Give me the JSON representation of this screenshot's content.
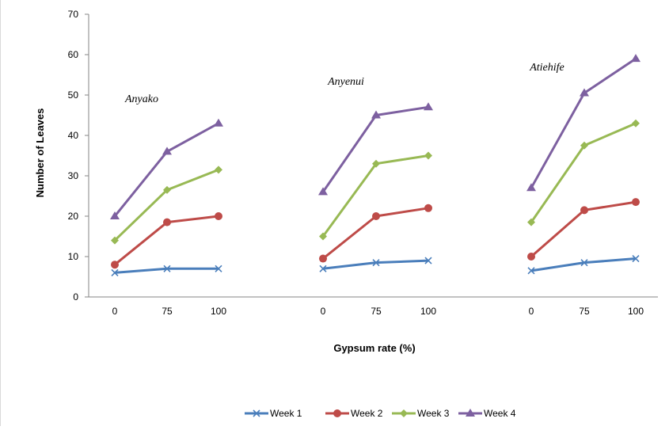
{
  "chart_data": {
    "type": "line",
    "xlabel": "Gypsum rate (%)",
    "ylabel": "Number of Leaves",
    "ylim": [
      0,
      70
    ],
    "yticks": [
      0,
      10,
      20,
      30,
      40,
      50,
      60,
      70
    ],
    "grid": false,
    "legend_position": "bottom",
    "groups": [
      {
        "label": "Anyako",
        "x": [
          "0",
          "75",
          "100"
        ],
        "series": [
          {
            "name": "Week 1",
            "values": [
              6,
              7,
              7
            ]
          },
          {
            "name": "Week 2",
            "values": [
              8,
              18.5,
              20
            ]
          },
          {
            "name": "Week 3",
            "values": [
              14,
              26.5,
              31.5
            ]
          },
          {
            "name": "Week 4",
            "values": [
              20,
              36,
              43
            ]
          }
        ]
      },
      {
        "label": "Anyenui",
        "x": [
          "0",
          "75",
          "100"
        ],
        "series": [
          {
            "name": "Week 1",
            "values": [
              7,
              8.5,
              9
            ]
          },
          {
            "name": "Week 2",
            "values": [
              9.5,
              20,
              22
            ]
          },
          {
            "name": "Week 3",
            "values": [
              15,
              33,
              35
            ]
          },
          {
            "name": "Week 4",
            "values": [
              26,
              45,
              47
            ]
          }
        ]
      },
      {
        "label": "Atiehife",
        "x": [
          "0",
          "75",
          "100"
        ],
        "series": [
          {
            "name": "Week 1",
            "values": [
              6.5,
              8.5,
              9.5
            ]
          },
          {
            "name": "Week 2",
            "values": [
              10,
              21.5,
              23.5
            ]
          },
          {
            "name": "Week 3",
            "values": [
              18.5,
              37.5,
              43
            ]
          },
          {
            "name": "Week 4",
            "values": [
              27,
              50.5,
              59
            ]
          }
        ]
      }
    ],
    "legend": [
      {
        "name": "Week 1",
        "color": "#4a7ebb",
        "marker": "x"
      },
      {
        "name": "Week 2",
        "color": "#be4b48",
        "marker": "circle"
      },
      {
        "name": "Week 3",
        "color": "#98b954",
        "marker": "diamond"
      },
      {
        "name": "Week 4",
        "color": "#7d60a0",
        "marker": "triangle"
      }
    ]
  }
}
